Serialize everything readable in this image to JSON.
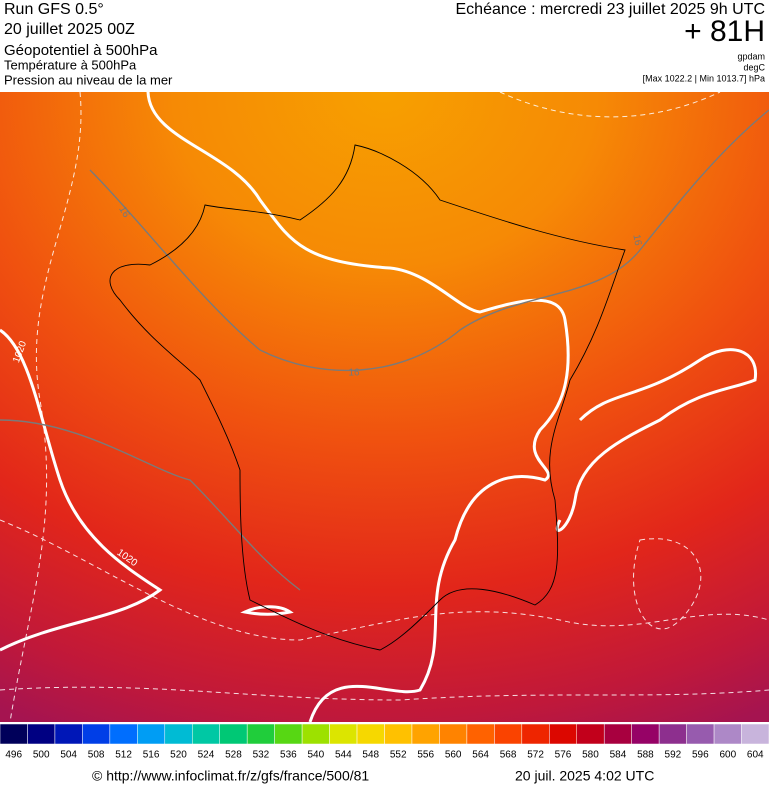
{
  "header": {
    "run": "Run GFS 0.5°",
    "run_date": "20 juillet 2025 00Z",
    "title": "Géopotentiel à 500hPa",
    "line2": "Température à 500hPa",
    "line3": "Pression au niveau de la mer",
    "echeance": "Echéance : mercredi 23 juillet 2025 9h UTC",
    "offset": "+ 81H",
    "unit1": "gpdam",
    "unit2": "degC",
    "pressure_range": "[Max 1022.2 | Min 1013.7] hPa"
  },
  "map": {
    "contour_labels": [
      "1020",
      "1020",
      "16",
      "16",
      "16"
    ]
  },
  "colorbar": {
    "ticks": [
      496,
      500,
      504,
      508,
      512,
      516,
      520,
      524,
      528,
      532,
      536,
      540,
      544,
      548,
      552,
      556,
      560,
      564,
      568,
      572,
      576,
      580,
      584,
      588,
      592,
      596,
      600,
      604
    ]
  },
  "footer": {
    "url": "© http://www.infoclimat.fr/z/gfs/france/500/81",
    "timestamp": "20 juil. 2025  4:02 UTC"
  }
}
